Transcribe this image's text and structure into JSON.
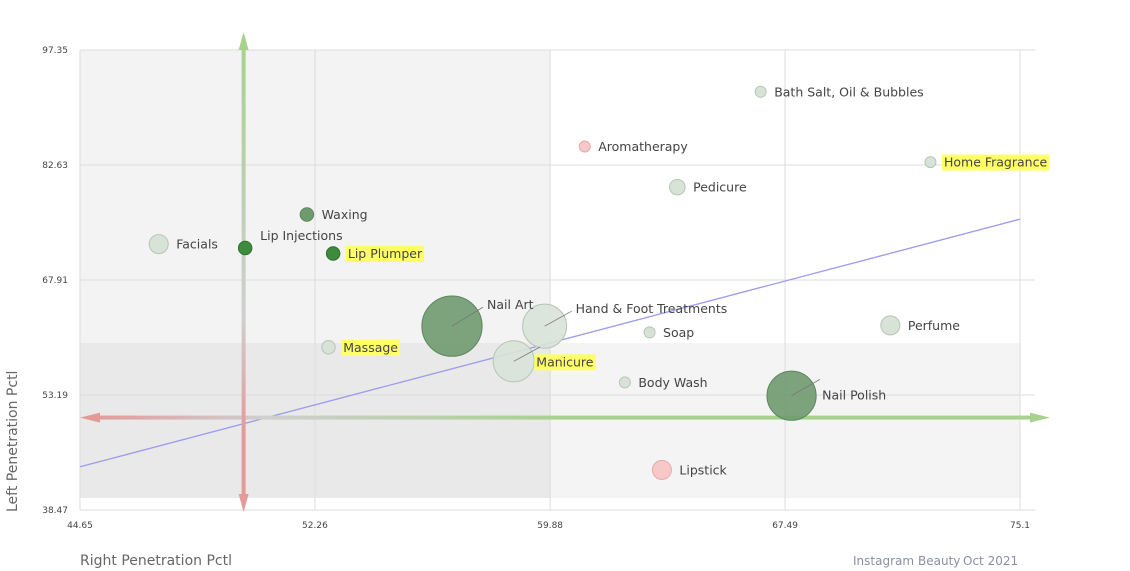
{
  "chart_data": {
    "type": "scatter",
    "xlabel": "Right Penetration Pctl",
    "ylabel": "Left Penetration Pctl",
    "x_ticks": [
      "44.65",
      "52.26",
      "59.88",
      "67.49",
      "75.1"
    ],
    "y_ticks": [
      "97.35",
      "82.63",
      "67.91",
      "53.19",
      "38.47"
    ],
    "xlim": [
      44.65,
      75.1
    ],
    "ylim": [
      38.47,
      97.35
    ],
    "grid": true,
    "reference": {
      "x": 49.95,
      "y": 50.3
    },
    "trendline": [
      [
        44.65,
        44.0
      ],
      [
        75.1,
        75.7
      ]
    ],
    "footer": [
      "Instagram",
      "Beauty",
      "Oct 2021"
    ],
    "colors": {
      "green_dark": "#3d8b3d",
      "green_mid": "#6f9a6f",
      "green_light": "#d8e3d8",
      "red_light": "#f7c8c8",
      "highlight": "#ffff66",
      "trend": "#9b9bef",
      "arrow_green": "#a6d28c",
      "arrow_red": "#e59a9a"
    },
    "points": [
      {
        "name": "Bath Salt, Oil & Bubbles",
        "x": 66.7,
        "y": 92.0,
        "size": 1,
        "color": "green_light",
        "highlight": false
      },
      {
        "name": "Aromatherapy",
        "x": 61.0,
        "y": 85.0,
        "size": 1,
        "color": "red_light",
        "highlight": false
      },
      {
        "name": "Home Fragrance",
        "x": 72.2,
        "y": 83.0,
        "size": 1,
        "color": "green_light",
        "highlight": true
      },
      {
        "name": "Pedicure",
        "x": 64.0,
        "y": 79.8,
        "size": 2,
        "color": "green_light",
        "highlight": false
      },
      {
        "name": "Waxing",
        "x": 52.0,
        "y": 76.3,
        "size": 1.5,
        "color": "green_mid",
        "highlight": false
      },
      {
        "name": "Facials",
        "x": 47.2,
        "y": 72.5,
        "size": 3,
        "color": "green_light",
        "highlight": false
      },
      {
        "name": "Lip Injections",
        "x": 50.0,
        "y": 72.0,
        "size": 1.5,
        "color": "green_dark",
        "highlight": false
      },
      {
        "name": "Lip Plumper",
        "x": 52.85,
        "y": 71.3,
        "size": 1.5,
        "color": "green_dark",
        "highlight": true
      },
      {
        "name": "Nail Art",
        "x": 56.7,
        "y": 62.0,
        "size": 30,
        "color": "green_mid",
        "highlight": false
      },
      {
        "name": "Hand & Foot Treatments",
        "x": 59.7,
        "y": 62.0,
        "size": 16,
        "color": "green_light",
        "highlight": false
      },
      {
        "name": "Soap",
        "x": 63.1,
        "y": 61.2,
        "size": 1,
        "color": "green_light",
        "highlight": false
      },
      {
        "name": "Perfume",
        "x": 70.9,
        "y": 62.1,
        "size": 3,
        "color": "green_light",
        "highlight": false
      },
      {
        "name": "Massage",
        "x": 52.7,
        "y": 59.3,
        "size": 1.5,
        "color": "green_light",
        "highlight": true
      },
      {
        "name": "Manicure",
        "x": 58.7,
        "y": 57.5,
        "size": 14,
        "color": "green_light",
        "highlight": true
      },
      {
        "name": "Body Wash",
        "x": 62.3,
        "y": 54.8,
        "size": 1,
        "color": "green_light",
        "highlight": false
      },
      {
        "name": "Nail Polish",
        "x": 67.7,
        "y": 53.1,
        "size": 20,
        "color": "green_mid",
        "highlight": false
      },
      {
        "name": "Lipstick",
        "x": 63.5,
        "y": 43.6,
        "size": 3,
        "color": "red_light",
        "highlight": false
      }
    ]
  }
}
